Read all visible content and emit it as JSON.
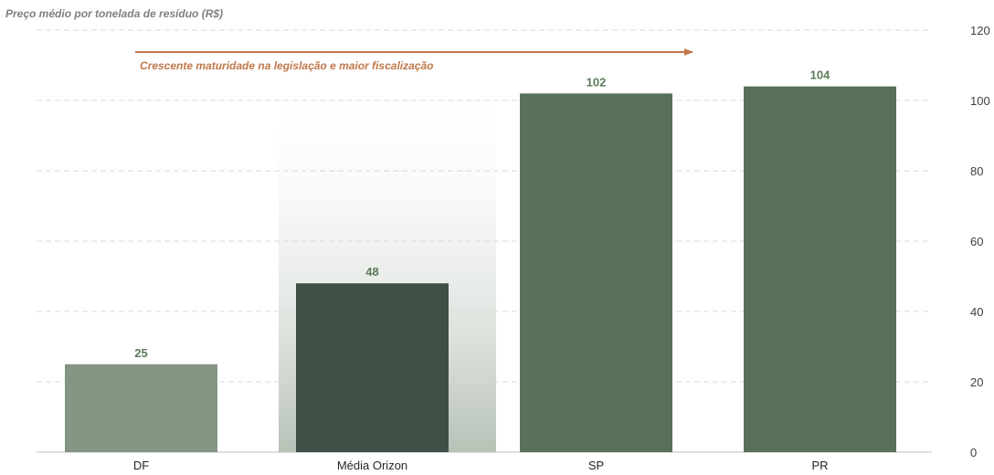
{
  "chart_data": {
    "type": "bar",
    "title": "Preço médio por tonelada de resíduo (R$)",
    "categories": [
      "DF",
      "Média Orizon",
      "SP",
      "PR"
    ],
    "values": [
      25,
      48,
      102,
      104
    ],
    "data_labels": [
      "25",
      "48",
      "102",
      "104"
    ],
    "bar_colors": [
      "#849584",
      "#404f45",
      "#59715a",
      "#59715a"
    ],
    "highlight_category": "Média Orizon",
    "annotation": "Crescente maturidade na legislação e maior fiscalização",
    "annotation_color": "#c0784a",
    "ylim": [
      0,
      120
    ],
    "yticks": [
      "0",
      "20",
      "40",
      "60",
      "80",
      "100",
      "120"
    ],
    "y_axis_side": "right",
    "grid": true
  }
}
